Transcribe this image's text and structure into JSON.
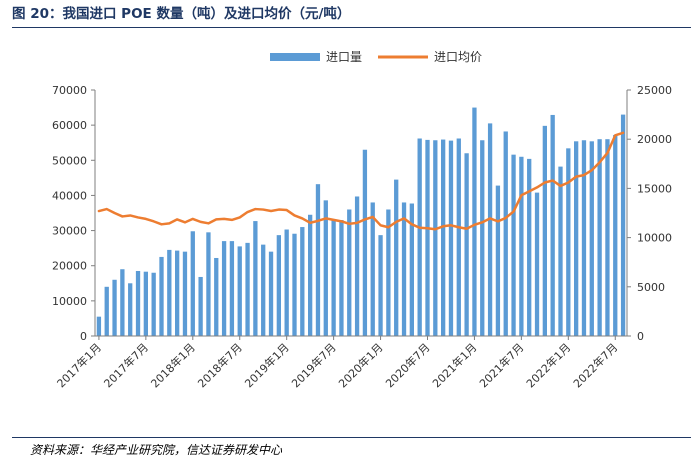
{
  "header": {
    "title": "图 20：我国进口 POE 数量（吨）及进口均价（元/吨）"
  },
  "footer": {
    "source": "资料来源：华经产业研究院，信达证券研发中心"
  },
  "colors": {
    "bar": "#5b9bd5",
    "line": "#ed7d31",
    "axis": "#7f7f7f",
    "title": "#1f3864"
  },
  "chart_data": {
    "type": "bar",
    "title": "",
    "xlabel": "",
    "ylabel": "",
    "ylim": [
      0,
      70000
    ],
    "y2lim": [
      0,
      25000
    ],
    "yticks": [
      0,
      10000,
      20000,
      30000,
      40000,
      50000,
      60000,
      70000
    ],
    "y2ticks": [
      0,
      5000,
      10000,
      15000,
      20000,
      25000
    ],
    "grid": false,
    "legend": "top-center",
    "x_tick_labels": [
      "2017年1月",
      "2017年7月",
      "2018年1月",
      "2018年7月",
      "2019年1月",
      "2019年7月",
      "2020年1月",
      "2020年7月",
      "2021年1月",
      "2021年7月",
      "2022年1月",
      "2022年7月"
    ],
    "categories": [
      "2017-01",
      "2017-02",
      "2017-03",
      "2017-04",
      "2017-05",
      "2017-06",
      "2017-07",
      "2017-08",
      "2017-09",
      "2017-10",
      "2017-11",
      "2017-12",
      "2018-01",
      "2018-02",
      "2018-03",
      "2018-04",
      "2018-05",
      "2018-06",
      "2018-07",
      "2018-08",
      "2018-09",
      "2018-10",
      "2018-11",
      "2018-12",
      "2019-01",
      "2019-02",
      "2019-03",
      "2019-04",
      "2019-05",
      "2019-06",
      "2019-07",
      "2019-08",
      "2019-09",
      "2019-10",
      "2019-11",
      "2019-12",
      "2020-01",
      "2020-02",
      "2020-03",
      "2020-04",
      "2020-05",
      "2020-06",
      "2020-07",
      "2020-08",
      "2020-09",
      "2020-10",
      "2020-11",
      "2020-12",
      "2021-01",
      "2021-02",
      "2021-03",
      "2021-04",
      "2021-05",
      "2021-06",
      "2021-07",
      "2021-08",
      "2021-09",
      "2021-10",
      "2021-11",
      "2021-12",
      "2022-01",
      "2022-02",
      "2022-03",
      "2022-04",
      "2022-05",
      "2022-06",
      "2022-07",
      "2022-08"
    ],
    "series": [
      {
        "name": "进口量",
        "type": "bar",
        "axis": "left",
        "values": [
          5500,
          14000,
          16000,
          19000,
          15000,
          18500,
          18300,
          18000,
          22500,
          24500,
          24300,
          24000,
          29800,
          16800,
          29500,
          22200,
          27000,
          27000,
          25500,
          26500,
          32700,
          26000,
          24000,
          28700,
          30300,
          29100,
          31000,
          34500,
          43200,
          38600,
          33000,
          33000,
          36000,
          39700,
          53000,
          38000,
          28700,
          36000,
          44500,
          38000,
          37700,
          56200,
          55800,
          55700,
          55900,
          55600,
          56200,
          52000,
          65000,
          55700,
          60500,
          42800,
          58200,
          51600,
          51000,
          50400,
          40800,
          59800,
          62900,
          48200,
          53400,
          55400,
          55700,
          55400,
          56000,
          56000,
          57200,
          63000
        ]
      },
      {
        "name": "进口均价",
        "type": "line",
        "axis": "right",
        "values": [
          12700,
          12900,
          12500,
          12150,
          12250,
          12050,
          11900,
          11650,
          11350,
          11450,
          11850,
          11550,
          11900,
          11600,
          11450,
          11850,
          11900,
          11800,
          12050,
          12600,
          12900,
          12850,
          12700,
          12850,
          12800,
          12250,
          11950,
          11500,
          11700,
          11950,
          11800,
          11650,
          11400,
          11500,
          11850,
          12100,
          11250,
          11050,
          11600,
          11950,
          11350,
          11000,
          10950,
          10850,
          11150,
          11250,
          11050,
          10900,
          11300,
          11550,
          11950,
          11650,
          12000,
          12650,
          14300,
          14700,
          15100,
          15600,
          15800,
          15250,
          15600,
          16200,
          16350,
          16850,
          17650,
          18600,
          20400,
          20650
        ]
      }
    ]
  }
}
